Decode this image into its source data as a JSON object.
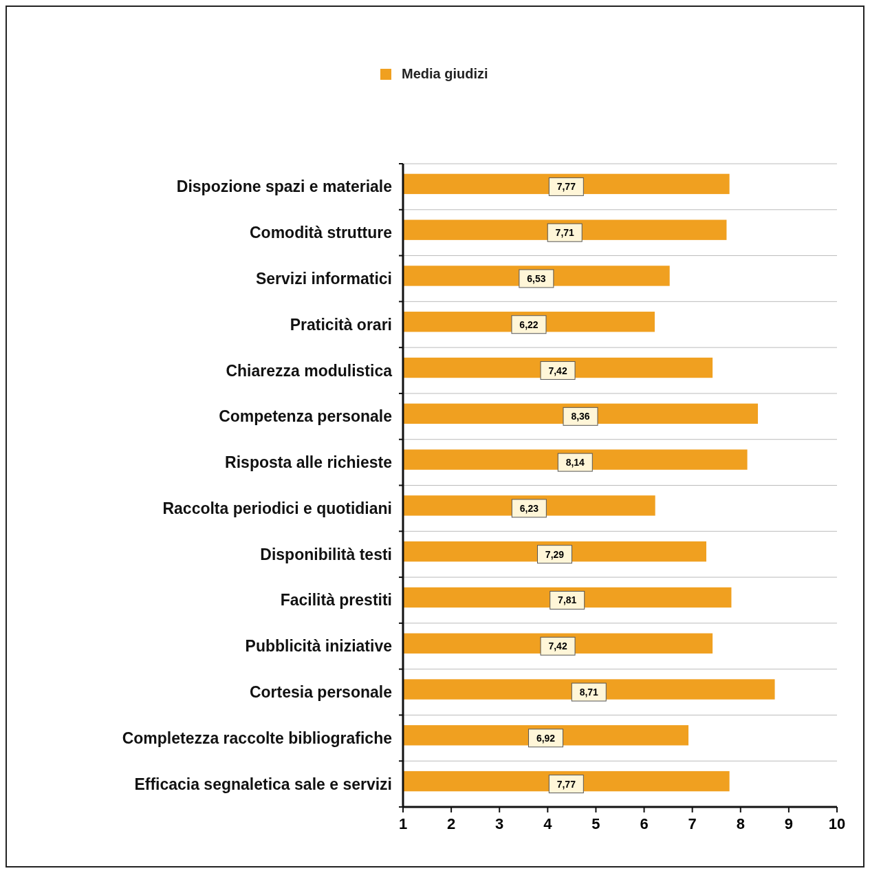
{
  "chart_data": {
    "type": "bar",
    "orientation": "horizontal",
    "categories": [
      "Dispozione spazi e materiale",
      "Comodità strutture",
      "Servizi informatici",
      "Praticità orari",
      "Chiarezza modulistica",
      "Competenza personale",
      "Risposta alle richieste",
      "Raccolta periodici e quotidiani",
      "Disponibilità testi",
      "Facilità prestiti",
      "Pubblicità iniziative",
      "Cortesia personale",
      "Completezza raccolte bibliografiche",
      "Efficacia segnaletica sale e servizi"
    ],
    "series": [
      {
        "name": "Media giudizi",
        "color": "#f0a020",
        "values": [
          7.77,
          7.71,
          6.53,
          6.22,
          7.42,
          8.36,
          8.14,
          6.23,
          7.29,
          7.81,
          7.42,
          8.71,
          6.92,
          7.77
        ],
        "value_labels": [
          "7,77",
          "7,71",
          "6,53",
          "6,22",
          "7,42",
          "8,36",
          "8,14",
          "6,23",
          "7,29",
          "7,81",
          "7,42",
          "8,71",
          "6,92",
          "7,77"
        ]
      }
    ],
    "xlim": [
      1,
      10
    ],
    "xticks": [
      1,
      2,
      3,
      4,
      5,
      6,
      7,
      8,
      9,
      10
    ],
    "grid": "y",
    "legend": "top"
  }
}
